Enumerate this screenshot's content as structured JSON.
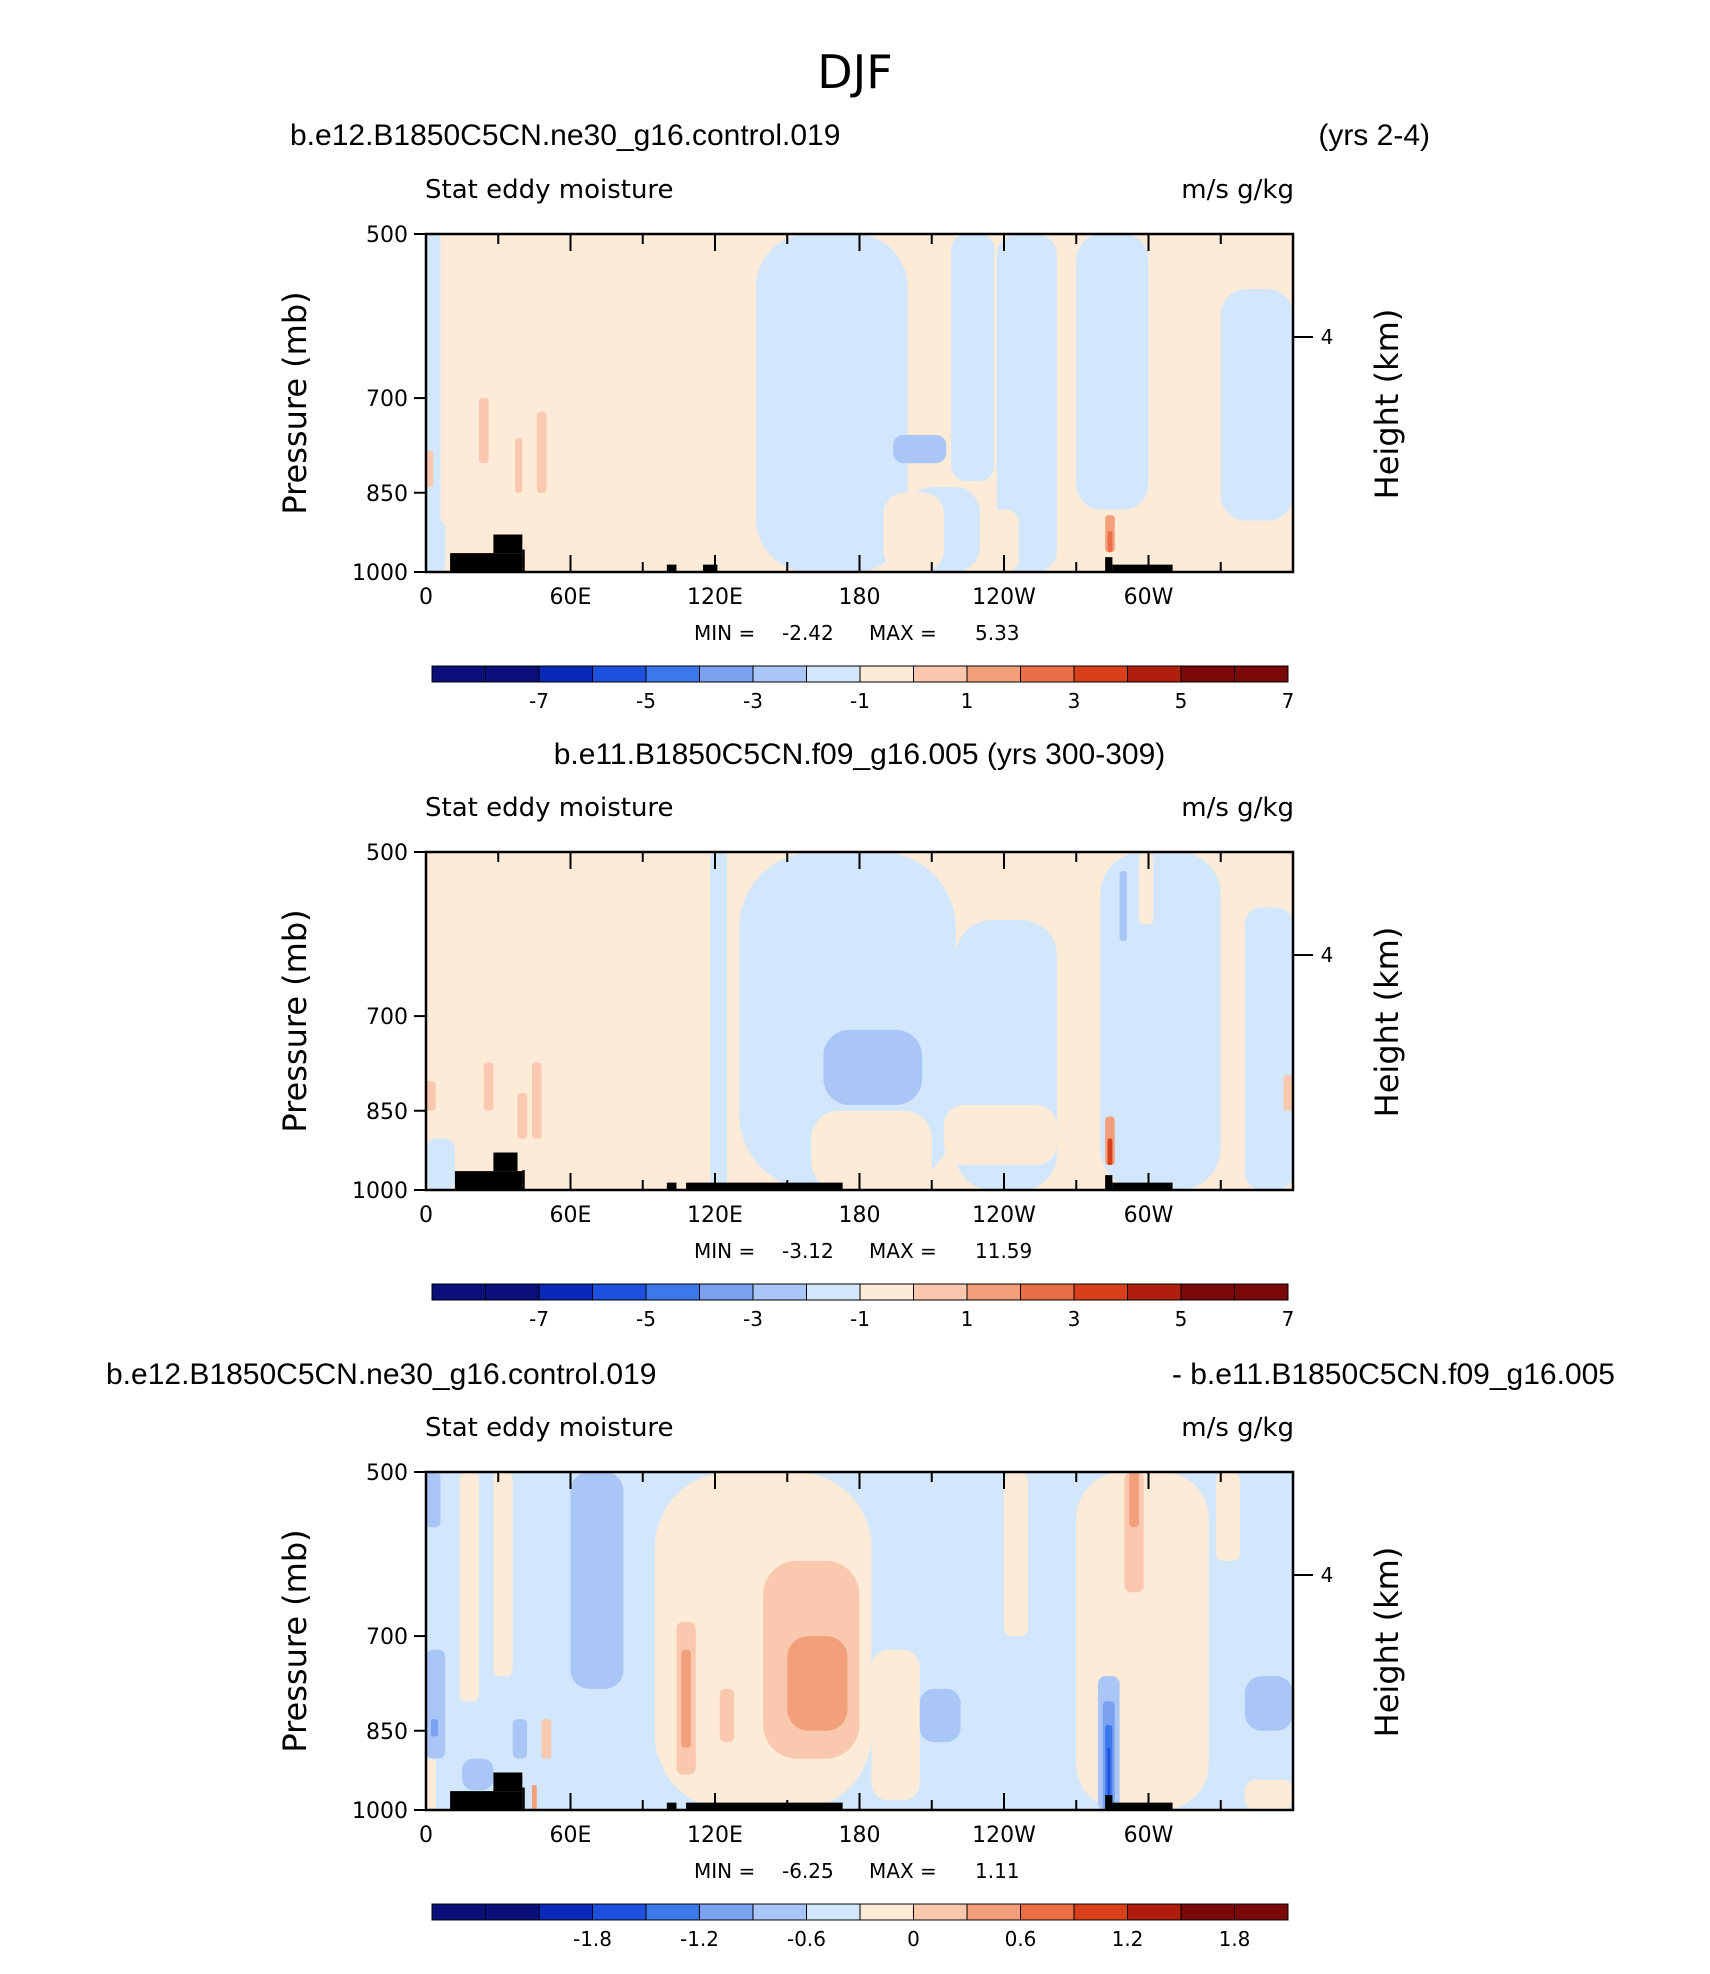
{
  "main_title": "DJF",
  "colors": {
    "scale": [
      "#0a0f7a",
      "#0a28b8",
      "#1e50e0",
      "#3c78ea",
      "#7aa2f0",
      "#aac6f6",
      "#d2e6fc",
      "#fdebd8",
      "#f9c8ae",
      "#f2a07c",
      "#eb6e46",
      "#d8401c",
      "#b01e0e",
      "#7a0808"
    ],
    "land": "#000000",
    "pos": [
      "#fdebd8",
      "#f9c8ae",
      "#f2a07c",
      "#eb6e46",
      "#d8401c"
    ],
    "neg": [
      "#d2e6fc",
      "#aac6f6",
      "#7aa2f0",
      "#3c78ea",
      "#1e50e0",
      "#0a28b8"
    ]
  },
  "chart_data": [
    {
      "type": "heatmap",
      "title_left": "b.e12.B1850C5CN.ne30_g16.control.019",
      "title_right": "(yrs 2-4)",
      "title_center": "",
      "subtitle_left": "Stat eddy moisture",
      "subtitle_right": "m/s g/kg",
      "xlabel": "",
      "ylabel": "Pressure (mb)",
      "ylabel_right": "Height (km)",
      "x_ticks": [
        "0",
        "60E",
        "120E",
        "180",
        "120W",
        "60W"
      ],
      "y_ticks": [
        "500",
        "700",
        "850",
        "1000"
      ],
      "y_right_ticks": [
        "4"
      ],
      "xlim": [
        0,
        360
      ],
      "ylim": [
        1000,
        500
      ],
      "min_label": "MIN =",
      "min_value": "-2.42",
      "max_label": "MAX =",
      "max_value": "5.33",
      "colorbar_levels": [
        -8,
        -7,
        -6,
        -5,
        -4,
        -3,
        -2,
        -1,
        0,
        1,
        2,
        3,
        4,
        5,
        6,
        7,
        8
      ],
      "colorbar_tick_labels": [
        "-7",
        "-5",
        "-3",
        "-1",
        "1",
        "3",
        "5",
        "7"
      ],
      "background": "pos",
      "regions": [
        {
          "lon": [
            0,
            6
          ],
          "p": [
            500,
            1000
          ],
          "level": -1
        },
        {
          "lon": [
            137,
            200
          ],
          "p": [
            500,
            1000
          ],
          "level": -1
        },
        {
          "lon": [
            200,
            230
          ],
          "p": [
            840,
            1000
          ],
          "level": -1
        },
        {
          "lon": [
            218,
            236
          ],
          "p": [
            500,
            830
          ],
          "level": -1
        },
        {
          "lon": [
            237,
            262
          ],
          "p": [
            500,
            1000
          ],
          "level": -1
        },
        {
          "lon": [
            270,
            300
          ],
          "p": [
            500,
            880
          ],
          "level": -1
        },
        {
          "lon": [
            330,
            360
          ],
          "p": [
            560,
            900
          ],
          "level": -1
        },
        {
          "lon": [
            0,
            8
          ],
          "p": [
            900,
            1000
          ],
          "level": -1
        },
        {
          "lon": [
            190,
            215
          ],
          "p": [
            850,
            1000
          ],
          "level": 1
        },
        {
          "lon": [
            232,
            246
          ],
          "p": [
            880,
            1000
          ],
          "level": 1
        },
        {
          "lon": [
            194,
            216
          ],
          "p": [
            755,
            800
          ],
          "level": -2
        },
        {
          "lon": [
            22,
            26
          ],
          "p": [
            700,
            800
          ],
          "level": 2
        },
        {
          "lon": [
            46,
            50
          ],
          "p": [
            720,
            850
          ],
          "level": 2
        },
        {
          "lon": [
            37,
            40
          ],
          "p": [
            760,
            850
          ],
          "level": 2
        },
        {
          "lon": [
            0,
            3
          ],
          "p": [
            780,
            840
          ],
          "level": 2
        },
        {
          "lon": [
            282,
            286
          ],
          "p": [
            890,
            960
          ],
          "level": 3
        },
        {
          "lon": [
            283,
            285
          ],
          "p": [
            920,
            960
          ],
          "level": 4
        }
      ],
      "land": [
        {
          "lon": [
            10,
            40
          ],
          "p": [
            962,
            1000
          ]
        },
        {
          "lon": [
            28,
            40
          ],
          "p": [
            926,
            962
          ]
        },
        {
          "lon": [
            40,
            41
          ],
          "p": [
            955,
            1000
          ]
        },
        {
          "lon": [
            100,
            104
          ],
          "p": [
            985,
            1000
          ]
        },
        {
          "lon": [
            115,
            121
          ],
          "p": [
            985,
            1000
          ]
        },
        {
          "lon": [
            282,
            285
          ],
          "p": [
            970,
            1000
          ]
        },
        {
          "lon": [
            285,
            310
          ],
          "p": [
            985,
            1000
          ]
        }
      ]
    },
    {
      "type": "heatmap",
      "title_left": "",
      "title_right": "",
      "title_center": "b.e11.B1850C5CN.f09_g16.005 (yrs 300-309)",
      "subtitle_left": "Stat eddy moisture",
      "subtitle_right": "m/s g/kg",
      "xlabel": "",
      "ylabel": "Pressure (mb)",
      "ylabel_right": "Height (km)",
      "x_ticks": [
        "0",
        "60E",
        "120E",
        "180",
        "120W",
        "60W"
      ],
      "y_ticks": [
        "500",
        "700",
        "850",
        "1000"
      ],
      "y_right_ticks": [
        "4"
      ],
      "xlim": [
        0,
        360
      ],
      "ylim": [
        1000,
        500
      ],
      "min_label": "MIN =",
      "min_value": "-3.12",
      "max_label": "MAX =",
      "max_value": "11.59",
      "colorbar_levels": [
        -8,
        -7,
        -6,
        -5,
        -4,
        -3,
        -2,
        -1,
        0,
        1,
        2,
        3,
        4,
        5,
        6,
        7,
        8
      ],
      "colorbar_tick_labels": [
        "-7",
        "-5",
        "-3",
        "-1",
        "1",
        "3",
        "5",
        "7"
      ],
      "background": "pos",
      "regions": [
        {
          "lon": [
            130,
            220
          ],
          "p": [
            500,
            1000
          ],
          "level": -1
        },
        {
          "lon": [
            220,
            262
          ],
          "p": [
            575,
            1000
          ],
          "level": -1
        },
        {
          "lon": [
            280,
            330
          ],
          "p": [
            500,
            1000
          ],
          "level": -1
        },
        {
          "lon": [
            340,
            360
          ],
          "p": [
            560,
            1000
          ],
          "level": -1
        },
        {
          "lon": [
            0,
            12
          ],
          "p": [
            900,
            1000
          ],
          "level": -1
        },
        {
          "lon": [
            118,
            125
          ],
          "p": [
            500,
            1000
          ],
          "level": -1
        },
        {
          "lon": [
            160,
            210
          ],
          "p": [
            850,
            1000
          ],
          "level": 1
        },
        {
          "lon": [
            215,
            262
          ],
          "p": [
            840,
            950
          ],
          "level": 1
        },
        {
          "lon": [
            296,
            302
          ],
          "p": [
            500,
            580
          ],
          "level": 1
        },
        {
          "lon": [
            165,
            206
          ],
          "p": [
            720,
            840
          ],
          "level": -2
        },
        {
          "lon": [
            288,
            291
          ],
          "p": [
            520,
            600
          ],
          "level": -2
        },
        {
          "lon": [
            0,
            4
          ],
          "p": [
            800,
            850
          ],
          "level": 2
        },
        {
          "lon": [
            24,
            28
          ],
          "p": [
            770,
            850
          ],
          "level": 2
        },
        {
          "lon": [
            38,
            42
          ],
          "p": [
            820,
            900
          ],
          "level": 2
        },
        {
          "lon": [
            44,
            48
          ],
          "p": [
            770,
            900
          ],
          "level": 2
        },
        {
          "lon": [
            356,
            360
          ],
          "p": [
            790,
            850
          ],
          "level": 2
        },
        {
          "lon": [
            282,
            286
          ],
          "p": [
            860,
            950
          ],
          "level": 3
        },
        {
          "lon": [
            283,
            285
          ],
          "p": [
            900,
            950
          ],
          "level": 5
        }
      ],
      "land": [
        {
          "lon": [
            12,
            40
          ],
          "p": [
            962,
            1000
          ]
        },
        {
          "lon": [
            28,
            38
          ],
          "p": [
            926,
            962
          ]
        },
        {
          "lon": [
            40,
            41
          ],
          "p": [
            960,
            1000
          ]
        },
        {
          "lon": [
            100,
            104
          ],
          "p": [
            985,
            1000
          ]
        },
        {
          "lon": [
            108,
            173
          ],
          "p": [
            985,
            1000
          ]
        },
        {
          "lon": [
            282,
            285
          ],
          "p": [
            970,
            1000
          ]
        },
        {
          "lon": [
            285,
            310
          ],
          "p": [
            985,
            1000
          ]
        }
      ]
    },
    {
      "type": "heatmap",
      "title_left": "b.e12.B1850C5CN.ne30_g16.control.019",
      "title_right": "- b.e11.B1850C5CN.f09_g16.005",
      "title_center": "",
      "subtitle_left": "Stat eddy moisture",
      "subtitle_right": "m/s g/kg",
      "xlabel": "",
      "ylabel": "Pressure (mb)",
      "ylabel_right": "Height (km)",
      "x_ticks": [
        "0",
        "60E",
        "120E",
        "180",
        "120W",
        "60W"
      ],
      "y_ticks": [
        "500",
        "700",
        "850",
        "1000"
      ],
      "y_right_ticks": [
        "4"
      ],
      "xlim": [
        0,
        360
      ],
      "ylim": [
        1000,
        500
      ],
      "min_label": "MIN =",
      "min_value": "-6.25",
      "max_label": "MAX =",
      "max_value": "1.11",
      "colorbar_levels": [
        -2.4,
        -2.1,
        -1.8,
        -1.5,
        -1.2,
        -0.9,
        -0.6,
        -0.3,
        0,
        0.3,
        0.6,
        0.9,
        1.2,
        1.5,
        1.8,
        2.1,
        2.4
      ],
      "colorbar_tick_labels": [
        "-1.8",
        "-1.2",
        "-0.6",
        "0",
        "0.6",
        "1.2",
        "1.8"
      ],
      "background": "neg",
      "regions": [
        {
          "lon": [
            14,
            22
          ],
          "p": [
            500,
            800
          ],
          "level": 1
        },
        {
          "lon": [
            28,
            36
          ],
          "p": [
            500,
            760
          ],
          "level": 1
        },
        {
          "lon": [
            95,
            185
          ],
          "p": [
            500,
            1000
          ],
          "level": 1
        },
        {
          "lon": [
            185,
            205
          ],
          "p": [
            720,
            980
          ],
          "level": 1
        },
        {
          "lon": [
            240,
            250
          ],
          "p": [
            500,
            700
          ],
          "level": 1
        },
        {
          "lon": [
            270,
            325
          ],
          "p": [
            500,
            1000
          ],
          "level": 1
        },
        {
          "lon": [
            328,
            338
          ],
          "p": [
            500,
            600
          ],
          "level": 1
        },
        {
          "lon": [
            0,
            4
          ],
          "p": [
            900,
            1000
          ],
          "level": 1
        },
        {
          "lon": [
            340,
            360
          ],
          "p": [
            940,
            1000
          ],
          "level": 1
        },
        {
          "lon": [
            104,
            112
          ],
          "p": [
            680,
            930
          ],
          "level": 2
        },
        {
          "lon": [
            122,
            128
          ],
          "p": [
            780,
            870
          ],
          "level": 2
        },
        {
          "lon": [
            140,
            180
          ],
          "p": [
            600,
            900
          ],
          "level": 2
        },
        {
          "lon": [
            150,
            175
          ],
          "p": [
            700,
            850
          ],
          "level": 3
        },
        {
          "lon": [
            106,
            110
          ],
          "p": [
            720,
            880
          ],
          "level": 3
        },
        {
          "lon": [
            290,
            298
          ],
          "p": [
            500,
            640
          ],
          "level": 2
        },
        {
          "lon": [
            292,
            296
          ],
          "p": [
            500,
            560
          ],
          "level": 3
        },
        {
          "lon": [
            48,
            52
          ],
          "p": [
            830,
            900
          ],
          "level": 2
        },
        {
          "lon": [
            44,
            46
          ],
          "p": [
            950,
            1000
          ],
          "level": 3
        },
        {
          "lon": [
            60,
            82
          ],
          "p": [
            500,
            780
          ],
          "level": -2
        },
        {
          "lon": [
            0,
            6
          ],
          "p": [
            500,
            560
          ],
          "level": -2
        },
        {
          "lon": [
            0,
            8
          ],
          "p": [
            720,
            900
          ],
          "level": -2
        },
        {
          "lon": [
            2,
            5
          ],
          "p": [
            830,
            860
          ],
          "level": -3
        },
        {
          "lon": [
            15,
            28
          ],
          "p": [
            900,
            960
          ],
          "level": -2
        },
        {
          "lon": [
            36,
            42
          ],
          "p": [
            830,
            900
          ],
          "level": -2
        },
        {
          "lon": [
            205,
            222
          ],
          "p": [
            780,
            870
          ],
          "level": -2
        },
        {
          "lon": [
            340,
            360
          ],
          "p": [
            760,
            850
          ],
          "level": -2
        },
        {
          "lon": [
            279,
            288
          ],
          "p": [
            760,
            1000
          ],
          "level": -2
        },
        {
          "lon": [
            281,
            286
          ],
          "p": [
            800,
            1000
          ],
          "level": -3
        },
        {
          "lon": [
            282,
            285
          ],
          "p": [
            840,
            1000
          ],
          "level": -4
        },
        {
          "lon": [
            283,
            284
          ],
          "p": [
            880,
            1000
          ],
          "level": -5
        }
      ],
      "land": [
        {
          "lon": [
            10,
            40
          ],
          "p": [
            962,
            1000
          ]
        },
        {
          "lon": [
            28,
            40
          ],
          "p": [
            926,
            962
          ]
        },
        {
          "lon": [
            40,
            41
          ],
          "p": [
            955,
            1000
          ]
        },
        {
          "lon": [
            100,
            104
          ],
          "p": [
            985,
            1000
          ]
        },
        {
          "lon": [
            108,
            173
          ],
          "p": [
            985,
            1000
          ]
        },
        {
          "lon": [
            282,
            285
          ],
          "p": [
            970,
            1000
          ]
        },
        {
          "lon": [
            285,
            310
          ],
          "p": [
            985,
            1000
          ]
        }
      ]
    }
  ]
}
